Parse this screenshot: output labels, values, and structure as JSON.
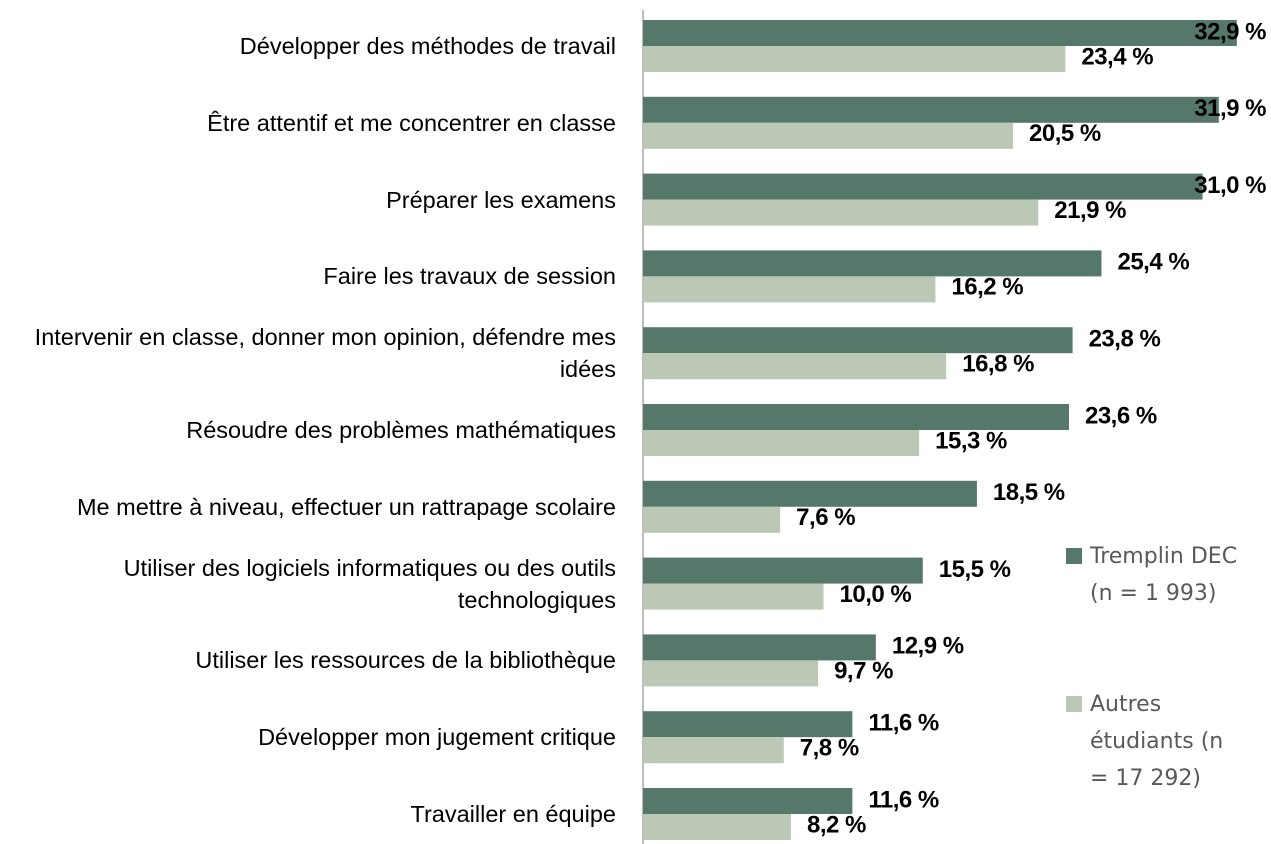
{
  "chart_data": {
    "type": "bar",
    "orientation": "horizontal",
    "categories": [
      "Développer des méthodes de travail",
      "Être attentif et me concentrer en classe",
      "Préparer les examens",
      "Faire les travaux de session",
      "Intervenir en classe, donner mon opinion, défendre mes idées",
      "Résoudre des problèmes mathématiques",
      "Me mettre à niveau, effectuer un rattrapage scolaire",
      "Utiliser des logiciels informatiques ou des outils technologiques",
      "Utiliser les ressources de la bibliothèque",
      "Développer mon jugement critique",
      "Travailler en équipe"
    ],
    "series": [
      {
        "name": "Tremplin DEC (n = 1 993)",
        "color": "#56786a",
        "values": [
          32.9,
          31.9,
          31.0,
          25.4,
          23.8,
          23.6,
          18.5,
          15.5,
          12.9,
          11.6,
          11.6
        ],
        "value_labels": [
          "32,9 %",
          "31,9 %",
          "31,0 %",
          "25,4 %",
          "23,8 %",
          "23,6 %",
          "18,5 %",
          "15,5 %",
          "12,9 %",
          "11,6 %",
          "11,6 %"
        ]
      },
      {
        "name": "Autres étudiants (n = 17 292)",
        "color": "#bcc8b6",
        "values": [
          23.4,
          20.5,
          21.9,
          16.2,
          16.8,
          15.3,
          7.6,
          10.0,
          9.7,
          7.8,
          8.2
        ],
        "value_labels": [
          "23,4 %",
          "20,5 %",
          "21,9 %",
          "16,2 %",
          "16,8 %",
          "15,3 %",
          "7,6 %",
          "10,0 %",
          "9,7 %",
          "7,8 %",
          "8,2 %"
        ]
      }
    ],
    "legend": "right"
  }
}
